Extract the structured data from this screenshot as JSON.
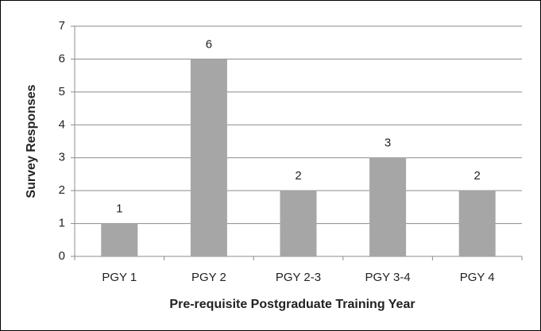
{
  "chart_data": {
    "type": "bar",
    "categories": [
      "PGY 1",
      "PGY 2",
      "PGY 2-3",
      "PGY 3-4",
      "PGY 4"
    ],
    "values": [
      1,
      6,
      2,
      3,
      2
    ],
    "color": "#a6a6a6",
    "x_label": "Pre-requisite Postgraduate Training Year",
    "y_label": "Survey Responses",
    "ylim": [
      0,
      7
    ],
    "yticks": [
      0,
      1,
      2,
      3,
      4,
      5,
      6,
      7
    ],
    "grid": true
  }
}
